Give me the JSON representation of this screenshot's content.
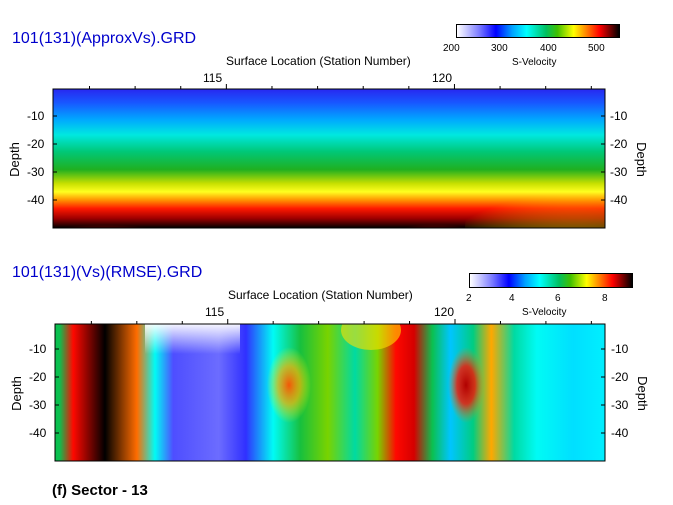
{
  "caption": "(f) Sector - 13",
  "chart_data": [
    {
      "type": "heatmap",
      "title": "101(131)(ApproxVs).GRD",
      "xlabel": "Surface Location (Station Number)",
      "ylabel_left": "Depth",
      "ylabel_right": "Depth",
      "x_ticks": [
        115,
        120
      ],
      "y_ticks": [
        -10,
        -20,
        -30,
        -40
      ],
      "xlim": [
        111.2,
        123.3
      ],
      "ylim": [
        -49,
        -1
      ],
      "colorbar": {
        "label": "S-Velocity",
        "ticks": [
          200,
          300,
          400,
          500
        ],
        "range": [
          180,
          540
        ]
      },
      "value_bands": [
        {
          "depth": -2,
          "value": 240
        },
        {
          "depth": -10,
          "value": 270
        },
        {
          "depth": -20,
          "value": 330
        },
        {
          "depth": -30,
          "value": 390
        },
        {
          "depth": -38,
          "value": 450
        },
        {
          "depth": -44,
          "value": 510
        }
      ]
    },
    {
      "type": "heatmap",
      "title": "101(131)(Vs)(RMSE).GRD",
      "xlabel": "Surface Location (Station Number)",
      "ylabel_left": "Depth",
      "ylabel_right": "Depth",
      "x_ticks": [
        115,
        120
      ],
      "y_ticks": [
        -10,
        -20,
        -30,
        -40
      ],
      "xlim": [
        111.2,
        123.3
      ],
      "ylim": [
        -49,
        -1
      ],
      "colorbar": {
        "label": "S-Velocity",
        "ticks": [
          2,
          4,
          6,
          8
        ],
        "range": [
          1,
          9
        ]
      },
      "columns": [
        {
          "station": 111.3,
          "value": 5.5
        },
        {
          "station": 111.6,
          "value": 8.0
        },
        {
          "station": 112.3,
          "value": 9.0
        },
        {
          "station": 113.0,
          "value": 7.5
        },
        {
          "station": 113.4,
          "value": 4.5
        },
        {
          "station": 113.8,
          "value": 2.4
        },
        {
          "station": 114.8,
          "value": 2.2
        },
        {
          "station": 115.4,
          "value": 2.6
        },
        {
          "station": 116.0,
          "value": 4.5
        },
        {
          "station": 116.6,
          "value": 5.6
        },
        {
          "station": 117.2,
          "value": 6.2
        },
        {
          "station": 117.8,
          "value": 5.0
        },
        {
          "station": 118.3,
          "value": 6.2
        },
        {
          "station": 118.7,
          "value": 8.0
        },
        {
          "station": 119.1,
          "value": 8.2
        },
        {
          "station": 119.5,
          "value": 5.5
        },
        {
          "station": 119.9,
          "value": 4.0
        },
        {
          "station": 120.4,
          "value": 5.2
        },
        {
          "station": 120.8,
          "value": 7.2
        },
        {
          "station": 121.3,
          "value": 5.0
        },
        {
          "station": 121.8,
          "value": 4.5
        },
        {
          "station": 122.6,
          "value": 4.2
        },
        {
          "station": 123.2,
          "value": 4.3
        }
      ]
    }
  ]
}
